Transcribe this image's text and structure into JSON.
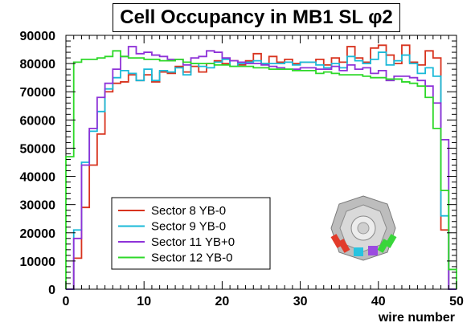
{
  "chart_data": {
    "type": "histogram",
    "title": "Cell Occupancy in MB1 SL φ2",
    "xlabel": "wire number",
    "ylabel": "",
    "xlim": [
      0,
      50
    ],
    "ylim": [
      0,
      90000
    ],
    "x_ticks": [
      0,
      10,
      20,
      30,
      40,
      50
    ],
    "y_ticks": [
      0,
      10000,
      20000,
      30000,
      40000,
      50000,
      60000,
      70000,
      80000,
      90000
    ],
    "grid": false,
    "legend_position": "lower-left",
    "bin_width": 1,
    "series": [
      {
        "name": "Sector 8 YB-0",
        "color": "#d8331e",
        "bins_start": 0,
        "values": [
          0,
          11000,
          29000,
          44000,
          55000,
          70000,
          73000,
          73500,
          76000,
          74000,
          76000,
          73500,
          77000,
          76500,
          79000,
          77000,
          79000,
          77000,
          80000,
          81000,
          80000,
          81000,
          79500,
          81000,
          83500,
          80000,
          82500,
          80500,
          81500,
          80000,
          80500,
          80500,
          81500,
          79500,
          82000,
          80500,
          86000,
          82000,
          80500,
          85500,
          86500,
          83000,
          80000,
          86500,
          80500,
          79500,
          84500,
          82000,
          21000,
          0
        ]
      },
      {
        "name": "Sector 9 YB-0",
        "color": "#1ab9d8",
        "bins_start": 0,
        "values": [
          0,
          21000,
          45000,
          56000,
          63000,
          71000,
          75000,
          77500,
          76500,
          74000,
          78000,
          74000,
          77500,
          77000,
          78500,
          76000,
          80000,
          79000,
          78500,
          80500,
          81500,
          79000,
          80000,
          80500,
          81000,
          80000,
          80000,
          80000,
          80500,
          79500,
          80500,
          80500,
          79500,
          78500,
          80000,
          78500,
          82500,
          81000,
          80000,
          81500,
          84000,
          79500,
          81000,
          83000,
          80000,
          76500,
          78500,
          75500,
          26000,
          0
        ]
      },
      {
        "name": "Sector 11 YB+0",
        "color": "#8e32d8",
        "bins_start": 0,
        "values": [
          0,
          18000,
          44000,
          57000,
          68000,
          73000,
          78000,
          82500,
          86000,
          83500,
          84000,
          83000,
          82500,
          81500,
          81500,
          79500,
          82000,
          82500,
          84500,
          84000,
          82000,
          81000,
          80500,
          80000,
          80000,
          79500,
          79000,
          78500,
          78000,
          78000,
          78500,
          78500,
          78000,
          78000,
          79000,
          77500,
          79500,
          78000,
          78500,
          76500,
          77500,
          74000,
          75500,
          75500,
          75000,
          74000,
          72000,
          66000,
          53000,
          0
        ]
      },
      {
        "name": "Sector 12 YB-0",
        "color": "#2ed829",
        "bins_start": 0,
        "values": [
          47000,
          80500,
          81500,
          81500,
          82000,
          82500,
          84500,
          82500,
          82000,
          82000,
          81500,
          81500,
          81000,
          81000,
          81500,
          80500,
          80000,
          80000,
          80000,
          79500,
          79500,
          79000,
          79000,
          79000,
          78500,
          78500,
          78000,
          78000,
          78000,
          77500,
          77500,
          77500,
          76500,
          77000,
          76500,
          76000,
          76000,
          76000,
          75500,
          75000,
          75000,
          74500,
          74500,
          73500,
          73000,
          72000,
          68000,
          57000,
          35000,
          7000
        ]
      }
    ]
  }
}
